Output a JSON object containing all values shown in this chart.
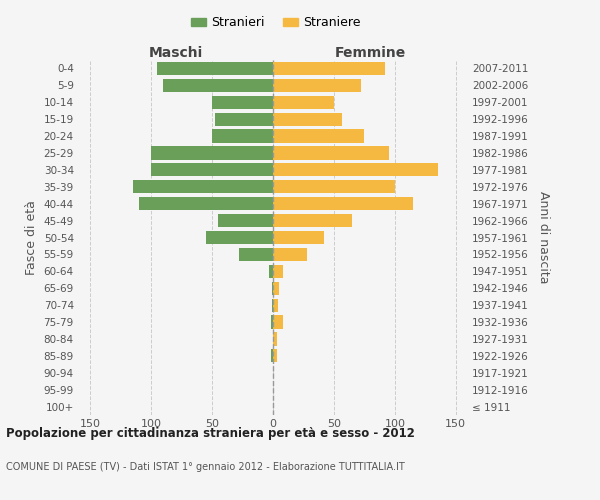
{
  "age_groups": [
    "100+",
    "95-99",
    "90-94",
    "85-89",
    "80-84",
    "75-79",
    "70-74",
    "65-69",
    "60-64",
    "55-59",
    "50-54",
    "45-49",
    "40-44",
    "35-39",
    "30-34",
    "25-29",
    "20-24",
    "15-19",
    "10-14",
    "5-9",
    "0-4"
  ],
  "birth_years": [
    "≤ 1911",
    "1912-1916",
    "1917-1921",
    "1922-1926",
    "1927-1931",
    "1932-1936",
    "1937-1941",
    "1942-1946",
    "1947-1951",
    "1952-1956",
    "1957-1961",
    "1962-1966",
    "1967-1971",
    "1972-1976",
    "1977-1981",
    "1982-1986",
    "1987-1991",
    "1992-1996",
    "1997-2001",
    "2002-2006",
    "2007-2011"
  ],
  "maschi": [
    0,
    0,
    0,
    2,
    0,
    2,
    1,
    1,
    3,
    28,
    55,
    45,
    110,
    115,
    100,
    100,
    50,
    48,
    50,
    90,
    95
  ],
  "femmine": [
    0,
    0,
    0,
    3,
    3,
    8,
    4,
    5,
    8,
    28,
    42,
    65,
    115,
    100,
    135,
    95,
    75,
    57,
    50,
    72,
    92
  ],
  "male_color": "#6a9f5a",
  "female_color": "#f5b942",
  "grid_color": "#cccccc",
  "center_line_color": "#999999",
  "xlim": 160,
  "title": "Popolazione per cittadinanza straniera per età e sesso - 2012",
  "subtitle": "COMUNE DI PAESE (TV) - Dati ISTAT 1° gennaio 2012 - Elaborazione TUTTITALIA.IT",
  "ylabel_left": "Fasce di età",
  "ylabel_right": "Anni di nascita",
  "xlabel_left": "Maschi",
  "xlabel_right": "Femmine",
  "legend_maschi": "Stranieri",
  "legend_femmine": "Straniere",
  "background_color": "#f5f5f5"
}
